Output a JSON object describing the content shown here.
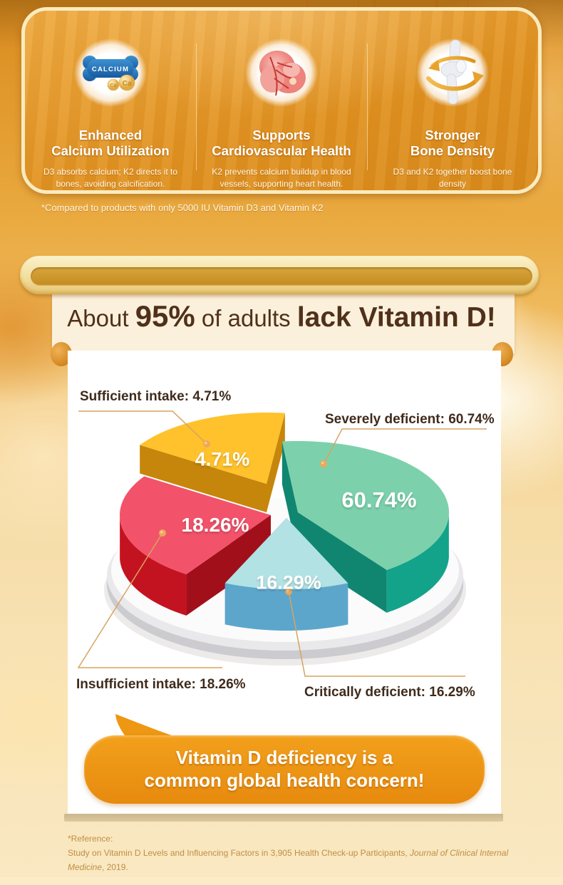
{
  "features": {
    "cards": [
      {
        "icon": "calcium-bone-icon",
        "title1": "Enhanced",
        "title2": "Calcium Utilization",
        "desc": "D3 absorbs calcium; K2 directs it to bones, avoiding calcification."
      },
      {
        "icon": "heart-icon",
        "title1": "Supports",
        "title2": "Cardiovascular Health",
        "desc": "K2 prevents calcium buildup in blood vessels, supporting heart health."
      },
      {
        "icon": "knee-joint-icon",
        "title1": "Stronger",
        "title2": "Bone Density",
        "desc": "D3 and K2 together boost bone density"
      }
    ],
    "calcium_label": "CALCIUM",
    "ca_small": "Ca",
    "ca_large": "Ca"
  },
  "footnote": "*Compared to products with only 5000 IU Vitamin D3 and Vitamin K2",
  "banner": {
    "prefix": "About ",
    "stat": "95%",
    "middle": " of adults ",
    "emphasis": "lack Vitamin D!"
  },
  "chart_data": {
    "type": "pie",
    "style": "3d-exploded",
    "title": "About 95% of adults lack Vitamin D!",
    "unit": "%",
    "legend_position": "callout-labels",
    "slices": [
      {
        "label": "Severely deficient",
        "value": 60.74,
        "display": "60.74%",
        "color_top": "#7CD1AC",
        "color_side": "#13A38A"
      },
      {
        "label": "Insufficient intake",
        "value": 18.26,
        "display": "18.26%",
        "color_top": "#F2536A",
        "color_side": "#C41320"
      },
      {
        "label": "Critically deficient",
        "value": 16.29,
        "display": "16.29%",
        "color_top": "#B2E2E4",
        "color_side": "#5CA6CC"
      },
      {
        "label": "Sufficient intake",
        "value": 4.71,
        "display": "4.71%",
        "color_top": "#FFC22C",
        "color_side": "#F2A40D"
      }
    ]
  },
  "labels": {
    "sufficient": "Sufficient intake: 4.71%",
    "severe": "Severely deficient: 60.74%",
    "insufficient": "Insufficient intake: 18.26%",
    "critical": "Critically deficient: 16.29%"
  },
  "values": {
    "sufficient": "4.71%",
    "severe": "60.74%",
    "insufficient": "18.26%",
    "critical": "16.29%"
  },
  "callout": {
    "line1": "Vitamin D deficiency is a",
    "line2": "common global health concern!"
  },
  "reference": {
    "label": "*Reference:",
    "before": "Study on Vitamin D Levels and Influencing Factors in 3,905 Health Check-up Participants, ",
    "journal": "Journal of Clinical Internal Medicine",
    "after": ", 2019."
  }
}
